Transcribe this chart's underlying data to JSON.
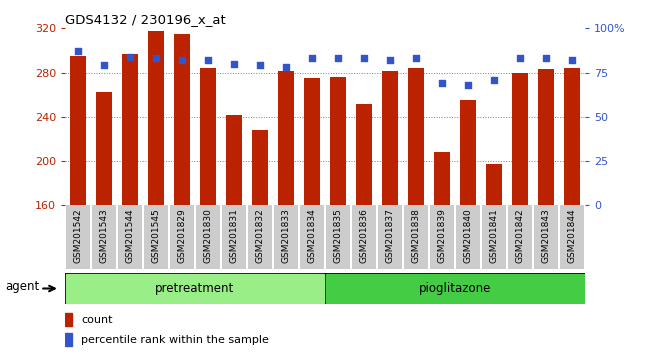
{
  "title": "GDS4132 / 230196_x_at",
  "samples": [
    "GSM201542",
    "GSM201543",
    "GSM201544",
    "GSM201545",
    "GSM201829",
    "GSM201830",
    "GSM201831",
    "GSM201832",
    "GSM201833",
    "GSM201834",
    "GSM201835",
    "GSM201836",
    "GSM201837",
    "GSM201838",
    "GSM201839",
    "GSM201840",
    "GSM201841",
    "GSM201842",
    "GSM201843",
    "GSM201844"
  ],
  "counts": [
    295,
    262,
    297,
    318,
    315,
    284,
    242,
    228,
    281,
    275,
    276,
    252,
    281,
    284,
    208,
    255,
    197,
    280,
    283,
    284
  ],
  "percentile_ranks": [
    87,
    79,
    84,
    83,
    82,
    82,
    80,
    79,
    78,
    83,
    83,
    83,
    82,
    83,
    69,
    68,
    71,
    83,
    83,
    82
  ],
  "pretreatment_samples": 10,
  "pioglitazone_samples": 10,
  "bar_color": "#bb2200",
  "dot_color": "#3355cc",
  "pretreatment_color": "#99ee88",
  "pioglitazone_color": "#44cc44",
  "ymin": 160,
  "ymax": 320,
  "yticks": [
    160,
    200,
    240,
    280,
    320
  ],
  "right_yticks": [
    0,
    25,
    50,
    75,
    100
  ],
  "right_ytick_labels": [
    "0",
    "25",
    "50",
    "75",
    "100%"
  ],
  "grid_values": [
    200,
    240,
    280
  ],
  "legend_count_label": "count",
  "legend_pct_label": "percentile rank within the sample",
  "background_color": "#ffffff",
  "tick_label_color_left": "#bb2200",
  "tick_label_color_right": "#3355cc",
  "xtick_bg_color": "#cccccc"
}
